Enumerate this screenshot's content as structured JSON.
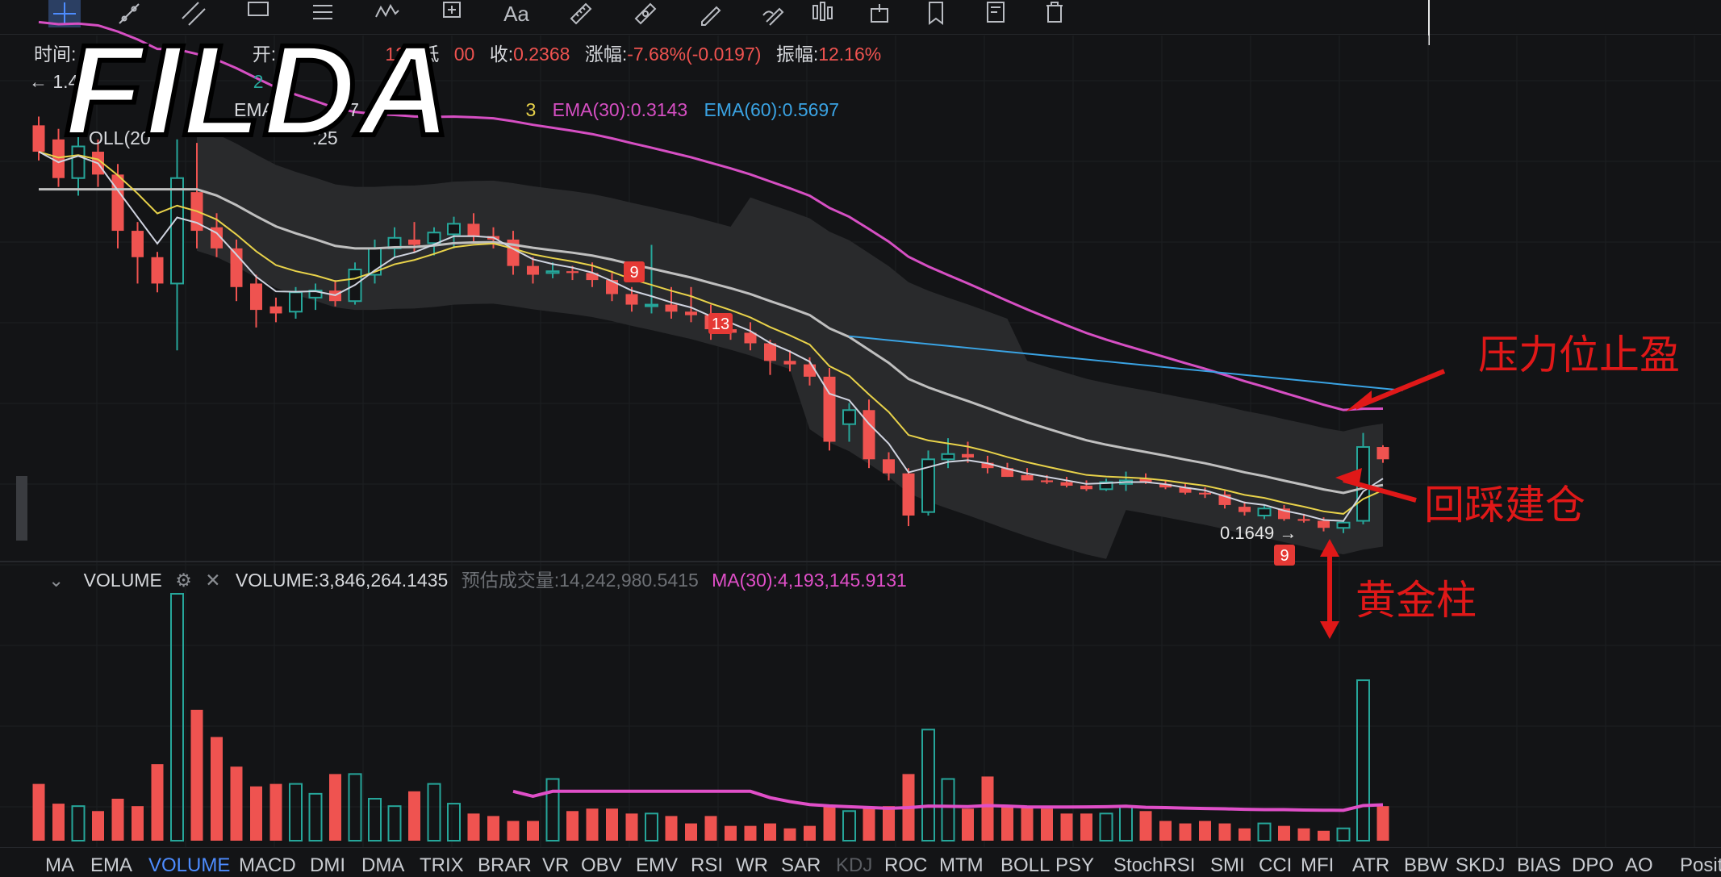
{
  "toolbar": {
    "tools": [
      {
        "icon": "crosshair-icon"
      },
      {
        "icon": "trend-line-icon"
      },
      {
        "icon": "parallel-channel-icon"
      },
      {
        "icon": "rectangle-icon"
      },
      {
        "icon": "horizontal-lines-icon"
      },
      {
        "icon": "pattern-icon"
      },
      {
        "icon": "measure-icon"
      },
      {
        "icon": "text-icon",
        "label": "Aa"
      },
      {
        "icon": "ruler-icon"
      },
      {
        "icon": "fib-icon"
      },
      {
        "icon": "pencil-icon"
      },
      {
        "icon": "brush-icon"
      },
      {
        "icon": "bars-icon"
      },
      {
        "icon": "lock-icon"
      },
      {
        "icon": "bookmark-icon"
      },
      {
        "icon": "note-icon"
      },
      {
        "icon": "trash-icon"
      }
    ]
  },
  "watermark": "FILDA",
  "info": {
    "time_label": "时间:",
    "open_label": "开:",
    "open_value": "0.25",
    "low_value": "12",
    "low_label": "低",
    "low_value2": "00",
    "close_label": "收:",
    "close_value": "0.2368",
    "change_label": "涨幅:",
    "change_value": "-7.68%(-0.0197)",
    "amp_label": "振幅:",
    "amp_value": "12.16%"
  },
  "row2": {
    "prefix": "← 1.4",
    "ema_count": "2"
  },
  "ema_row": {
    "ema_short": "EMA(5",
    "ema_short_val": ".177",
    "ema_tail": "3",
    "ema30": "EMA(30):0.3143",
    "ema60": "EMA(60):0.5697"
  },
  "boll_row": {
    "label": "OLL(20",
    "val": ".25"
  },
  "price_label": "0.1649",
  "td_labels": [
    "9",
    "13",
    "9"
  ],
  "volume_header": {
    "title": "VOLUME",
    "volume": "VOLUME:3,846,264.1435",
    "estimate": "预估成交量:14,242,980.5415",
    "ma": "MA(30):4,193,145.9131"
  },
  "annotations": {
    "take_profit": "压力位止盈",
    "pullback_entry": "回踩建仓",
    "golden_bar": "黄金柱"
  },
  "indicators": [
    "MA",
    "EMA",
    "VOLUME",
    "MACD",
    "DMI",
    "DMA",
    "TRIX",
    "BRAR",
    "VR",
    "OBV",
    "EMV",
    "RSI",
    "WR",
    "SAR",
    "KDJ",
    "ROC",
    "MTM",
    "BOLL",
    "PSY",
    "StochRSI",
    "SMI",
    "CCI",
    "MFI",
    "ATR",
    "BBW",
    "SKDJ",
    "BIAS",
    "DPO",
    "AO",
    "Posit"
  ],
  "active_indicator": "VOLUME",
  "disabled_indicator": "KDJ",
  "colors": {
    "up": "#26a69a",
    "down": "#ef5350",
    "ema_yellow": "#e8d24a",
    "ema_pink": "#d64fc3",
    "ema_blue": "#3aa3e3",
    "ema_grey": "#bfbfbf",
    "ema_white": "#d0d4e0",
    "annotation": "#e01818"
  },
  "chart_data": {
    "type": "candlestick",
    "candles": [
      {
        "o": 0.27,
        "h": 0.275,
        "l": 0.25,
        "c": 0.255
      },
      {
        "o": 0.262,
        "h": 0.268,
        "l": 0.235,
        "c": 0.24
      },
      {
        "o": 0.24,
        "h": 0.27,
        "l": 0.23,
        "c": 0.258
      },
      {
        "o": 0.255,
        "h": 0.262,
        "l": 0.235,
        "c": 0.242
      },
      {
        "o": 0.242,
        "h": 0.248,
        "l": 0.2,
        "c": 0.21
      },
      {
        "o": 0.21,
        "h": 0.215,
        "l": 0.18,
        "c": 0.195
      },
      {
        "o": 0.195,
        "h": 0.198,
        "l": 0.175,
        "c": 0.18
      },
      {
        "o": 0.18,
        "h": 0.262,
        "l": 0.142,
        "c": 0.24
      },
      {
        "o": 0.232,
        "h": 0.26,
        "l": 0.2,
        "c": 0.21
      },
      {
        "o": 0.212,
        "h": 0.22,
        "l": 0.195,
        "c": 0.2
      },
      {
        "o": 0.2,
        "h": 0.205,
        "l": 0.17,
        "c": 0.178
      },
      {
        "o": 0.18,
        "h": 0.185,
        "l": 0.155,
        "c": 0.165
      },
      {
        "o": 0.167,
        "h": 0.172,
        "l": 0.158,
        "c": 0.163
      },
      {
        "o": 0.164,
        "h": 0.178,
        "l": 0.16,
        "c": 0.175
      },
      {
        "o": 0.172,
        "h": 0.18,
        "l": 0.165,
        "c": 0.176
      },
      {
        "o": 0.176,
        "h": 0.182,
        "l": 0.167,
        "c": 0.17
      },
      {
        "o": 0.17,
        "h": 0.192,
        "l": 0.168,
        "c": 0.188
      },
      {
        "o": 0.185,
        "h": 0.205,
        "l": 0.18,
        "c": 0.2
      },
      {
        "o": 0.2,
        "h": 0.212,
        "l": 0.195,
        "c": 0.206
      },
      {
        "o": 0.205,
        "h": 0.215,
        "l": 0.198,
        "c": 0.202
      },
      {
        "o": 0.203,
        "h": 0.212,
        "l": 0.196,
        "c": 0.209
      },
      {
        "o": 0.208,
        "h": 0.218,
        "l": 0.2,
        "c": 0.214
      },
      {
        "o": 0.214,
        "h": 0.22,
        "l": 0.203,
        "c": 0.207
      },
      {
        "o": 0.207,
        "h": 0.212,
        "l": 0.2,
        "c": 0.205
      },
      {
        "o": 0.205,
        "h": 0.21,
        "l": 0.185,
        "c": 0.19
      },
      {
        "o": 0.19,
        "h": 0.195,
        "l": 0.18,
        "c": 0.185
      },
      {
        "o": 0.186,
        "h": 0.192,
        "l": 0.183,
        "c": 0.187
      },
      {
        "o": 0.187,
        "h": 0.19,
        "l": 0.182,
        "c": 0.186
      },
      {
        "o": 0.186,
        "h": 0.192,
        "l": 0.178,
        "c": 0.182
      },
      {
        "o": 0.182,
        "h": 0.186,
        "l": 0.17,
        "c": 0.174
      },
      {
        "o": 0.174,
        "h": 0.178,
        "l": 0.164,
        "c": 0.168
      },
      {
        "o": 0.168,
        "h": 0.202,
        "l": 0.163,
        "c": 0.168
      },
      {
        "o": 0.168,
        "h": 0.178,
        "l": 0.16,
        "c": 0.164
      },
      {
        "o": 0.164,
        "h": 0.178,
        "l": 0.158,
        "c": 0.162
      },
      {
        "o": 0.162,
        "h": 0.168,
        "l": 0.148,
        "c": 0.154
      },
      {
        "o": 0.154,
        "h": 0.16,
        "l": 0.148,
        "c": 0.152
      },
      {
        "o": 0.152,
        "h": 0.158,
        "l": 0.142,
        "c": 0.146
      },
      {
        "o": 0.146,
        "h": 0.148,
        "l": 0.128,
        "c": 0.136
      },
      {
        "o": 0.136,
        "h": 0.142,
        "l": 0.13,
        "c": 0.134
      },
      {
        "o": 0.134,
        "h": 0.138,
        "l": 0.122,
        "c": 0.127
      },
      {
        "o": 0.127,
        "h": 0.132,
        "l": 0.085,
        "c": 0.09
      },
      {
        "o": 0.1,
        "h": 0.112,
        "l": 0.09,
        "c": 0.108
      },
      {
        "o": 0.108,
        "h": 0.114,
        "l": 0.075,
        "c": 0.08
      },
      {
        "o": 0.08,
        "h": 0.084,
        "l": 0.068,
        "c": 0.072
      },
      {
        "o": 0.072,
        "h": 0.075,
        "l": 0.042,
        "c": 0.048
      },
      {
        "o": 0.05,
        "h": 0.085,
        "l": 0.048,
        "c": 0.08
      },
      {
        "o": 0.08,
        "h": 0.092,
        "l": 0.075,
        "c": 0.083
      },
      {
        "o": 0.083,
        "h": 0.09,
        "l": 0.078,
        "c": 0.081
      },
      {
        "o": 0.078,
        "h": 0.082,
        "l": 0.072,
        "c": 0.075
      },
      {
        "o": 0.075,
        "h": 0.078,
        "l": 0.07,
        "c": 0.07
      },
      {
        "o": 0.071,
        "h": 0.075,
        "l": 0.068,
        "c": 0.068
      },
      {
        "o": 0.068,
        "h": 0.071,
        "l": 0.066,
        "c": 0.067
      },
      {
        "o": 0.067,
        "h": 0.07,
        "l": 0.064,
        "c": 0.065
      },
      {
        "o": 0.065,
        "h": 0.068,
        "l": 0.062,
        "c": 0.063
      },
      {
        "o": 0.063,
        "h": 0.069,
        "l": 0.062,
        "c": 0.067
      },
      {
        "o": 0.066,
        "h": 0.073,
        "l": 0.062,
        "c": 0.068
      },
      {
        "o": 0.069,
        "h": 0.072,
        "l": 0.066,
        "c": 0.067
      },
      {
        "o": 0.066,
        "h": 0.068,
        "l": 0.063,
        "c": 0.064
      },
      {
        "o": 0.064,
        "h": 0.066,
        "l": 0.06,
        "c": 0.061
      },
      {
        "o": 0.061,
        "h": 0.064,
        "l": 0.058,
        "c": 0.06
      },
      {
        "o": 0.06,
        "h": 0.062,
        "l": 0.052,
        "c": 0.054
      },
      {
        "o": 0.053,
        "h": 0.056,
        "l": 0.048,
        "c": 0.05
      },
      {
        "o": 0.048,
        "h": 0.054,
        "l": 0.046,
        "c": 0.052
      },
      {
        "o": 0.052,
        "h": 0.054,
        "l": 0.045,
        "c": 0.046
      },
      {
        "o": 0.046,
        "h": 0.049,
        "l": 0.044,
        "c": 0.045
      },
      {
        "o": 0.045,
        "h": 0.047,
        "l": 0.039,
        "c": 0.041
      },
      {
        "o": 0.041,
        "h": 0.045,
        "l": 0.038,
        "c": 0.044
      },
      {
        "o": 0.045,
        "h": 0.095,
        "l": 0.043,
        "c": 0.087
      },
      {
        "o": 0.087,
        "h": 0.088,
        "l": 0.078,
        "c": 0.08
      }
    ],
    "volume": [
      0.23,
      0.15,
      0.14,
      0.12,
      0.17,
      0.14,
      0.31,
      1.0,
      0.53,
      0.42,
      0.3,
      0.22,
      0.23,
      0.23,
      0.19,
      0.27,
      0.27,
      0.17,
      0.14,
      0.2,
      0.23,
      0.15,
      0.11,
      0.1,
      0.08,
      0.08,
      0.25,
      0.12,
      0.13,
      0.13,
      0.11,
      0.11,
      0.1,
      0.07,
      0.1,
      0.06,
      0.06,
      0.07,
      0.05,
      0.06,
      0.14,
      0.12,
      0.13,
      0.14,
      0.27,
      0.45,
      0.25,
      0.13,
      0.26,
      0.14,
      0.14,
      0.13,
      0.11,
      0.11,
      0.11,
      0.14,
      0.12,
      0.08,
      0.07,
      0.08,
      0.07,
      0.05,
      0.07,
      0.06,
      0.05,
      0.04,
      0.05,
      0.65,
      0.14
    ],
    "ylim": [
      0.02,
      0.3
    ]
  }
}
